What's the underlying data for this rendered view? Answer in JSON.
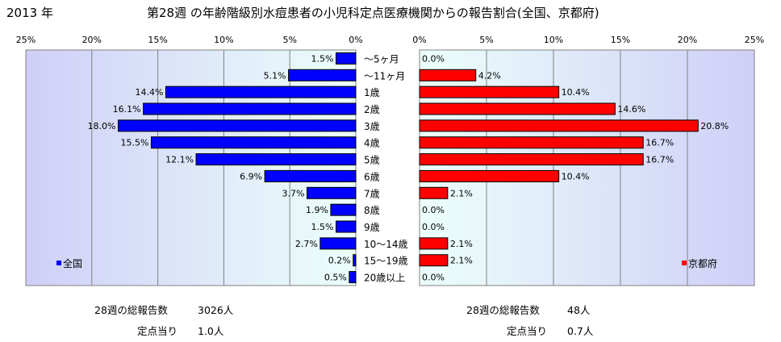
{
  "header": {
    "year": "2013 年",
    "title": "第28週 の年齢階級別水痘患者の小児科定点医療機関からの報告割合(全国、京都府)"
  },
  "chart_data": [
    {
      "type": "bar",
      "orientation": "horizontal",
      "direction": "right-to-left",
      "categories": [
        "～5ヶ月",
        "～11ヶ月",
        "1歳",
        "2歳",
        "3歳",
        "4歳",
        "5歳",
        "6歳",
        "7歳",
        "8歳",
        "9歳",
        "10～14歳",
        "15～19歳",
        "20歳以上"
      ],
      "series": [
        {
          "name": "全国",
          "color": "#0000ff",
          "values": [
            1.5,
            5.1,
            14.4,
            16.1,
            18.0,
            15.5,
            12.1,
            6.9,
            3.7,
            1.9,
            1.5,
            2.7,
            0.2,
            0.5
          ],
          "labels": [
            "1.5%",
            "5.1%",
            "14.4%",
            "16.1%",
            "18.0%",
            "15.5%",
            "12.1%",
            "6.9%",
            "3.7%",
            "1.9%",
            "1.5%",
            "2.7%",
            "0.2%",
            "0.5%"
          ]
        }
      ],
      "xlim": [
        0,
        25
      ],
      "ticks": [
        "25%",
        "20%",
        "15%",
        "10%",
        "5%",
        "0%"
      ],
      "grid": true,
      "legend": "bottom-left"
    },
    {
      "type": "bar",
      "orientation": "horizontal",
      "direction": "left-to-right",
      "categories": [
        "～5ヶ月",
        "～11ヶ月",
        "1歳",
        "2歳",
        "3歳",
        "4歳",
        "5歳",
        "6歳",
        "7歳",
        "8歳",
        "9歳",
        "10～14歳",
        "15～19歳",
        "20歳以上"
      ],
      "series": [
        {
          "name": "京都府",
          "color": "#ff0000",
          "values": [
            0.0,
            4.2,
            10.4,
            14.6,
            20.8,
            16.7,
            16.7,
            10.4,
            2.1,
            0.0,
            0.0,
            2.1,
            2.1,
            0.0
          ],
          "labels": [
            "0.0%",
            "4.2%",
            "10.4%",
            "14.6%",
            "20.8%",
            "16.7%",
            "16.7%",
            "10.4%",
            "2.1%",
            "0.0%",
            "0.0%",
            "2.1%",
            "2.1%",
            "0.0%"
          ]
        }
      ],
      "xlim": [
        0,
        25
      ],
      "ticks": [
        "0%",
        "5%",
        "10%",
        "15%",
        "20%",
        "25%"
      ],
      "grid": true,
      "legend": "bottom-right"
    }
  ],
  "footer": {
    "national": {
      "reports_label": "28週の総報告数",
      "reports_value": "3026人",
      "per_label": "定点当り",
      "per_value": "1.0人"
    },
    "kyoto": {
      "reports_label": "28週の総報告数",
      "reports_value": "48人",
      "per_label": "定点当り",
      "per_value": "0.7人"
    }
  }
}
